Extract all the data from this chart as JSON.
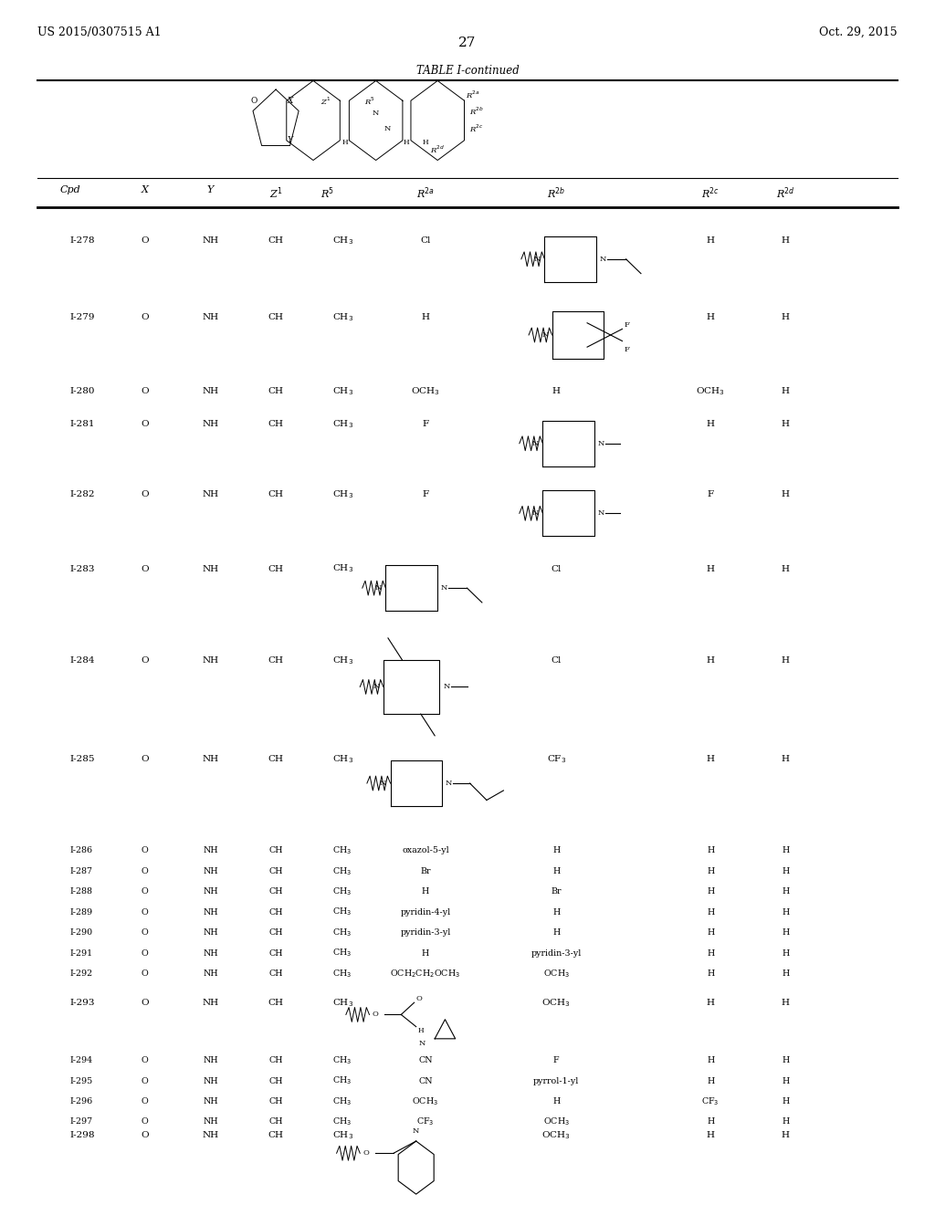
{
  "page_left": "US 2015/0307515 A1",
  "page_right": "Oct. 29, 2015",
  "page_number": "27",
  "table_title": "TABLE I-continued",
  "bg_color": "#ffffff",
  "text_color": "#000000"
}
